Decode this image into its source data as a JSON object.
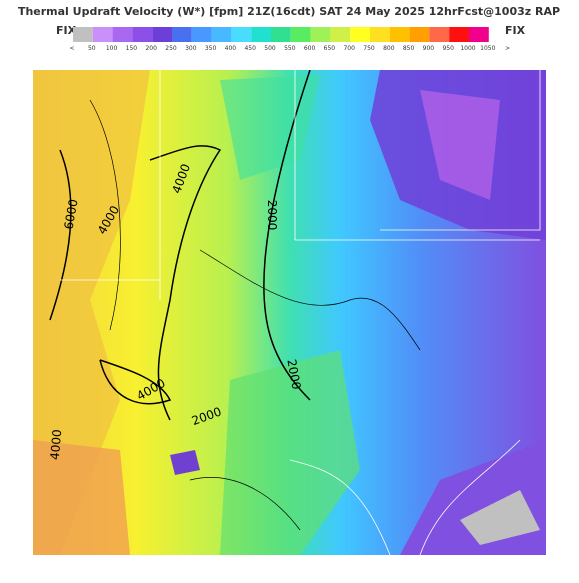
{
  "header": {
    "title": "Thermal Updraft Velocity (W*) [fpm] 21Z(16cdt) SAT 24 May 2025 12hrFcst@1003z RAP",
    "fix_left": "FIX",
    "fix_right": "FIX"
  },
  "colorbar": {
    "colors": [
      "#c0c0c0",
      "#c890f8",
      "#a868f0",
      "#8c50e8",
      "#6c40d8",
      "#4870f0",
      "#4898ff",
      "#48b8ff",
      "#48dcff",
      "#20e0d0",
      "#30e090",
      "#58ec60",
      "#a0f058",
      "#d0f048",
      "#ffff20",
      "#ffe020",
      "#ffc000",
      "#ffa000",
      "#ff6848",
      "#ff1010",
      "#f0008c"
    ],
    "labels": [
      "<",
      50,
      100,
      150,
      200,
      250,
      300,
      350,
      400,
      450,
      500,
      550,
      600,
      650,
      700,
      750,
      800,
      850,
      900,
      950,
      1000,
      1050,
      ">"
    ]
  },
  "map": {
    "contour_labels": [
      "4000",
      "6000",
      "4000",
      "2000",
      "2000",
      "4000",
      "2000",
      "4000"
    ]
  }
}
